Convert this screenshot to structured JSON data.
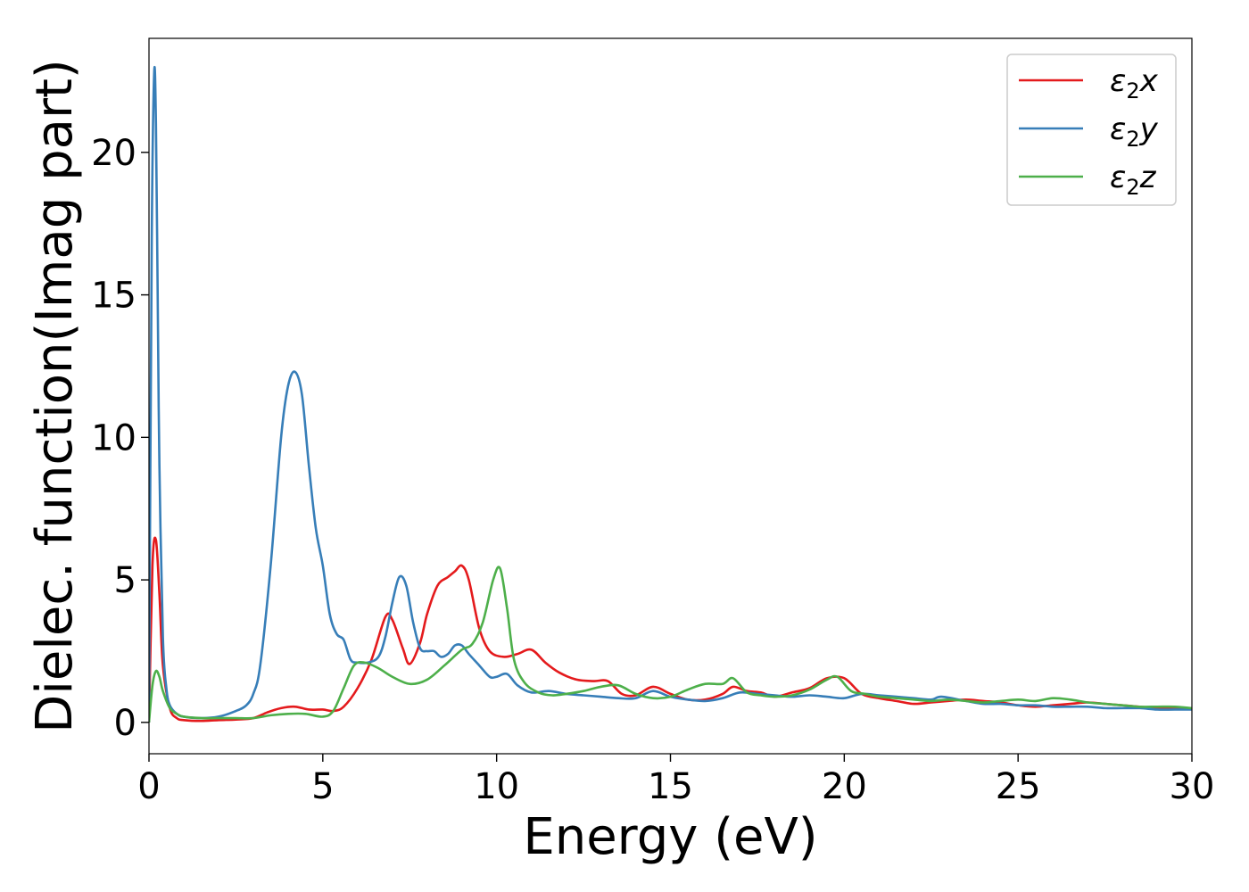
{
  "chart_data": {
    "type": "line",
    "title": "",
    "xlabel": "Energy (eV)",
    "ylabel": "Dielec. function(Imag part)",
    "xlim": [
      0,
      30
    ],
    "ylim": [
      -1.1,
      24
    ],
    "xticks": [
      0,
      5,
      10,
      15,
      20,
      25,
      30
    ],
    "yticks": [
      0,
      5,
      10,
      15,
      20
    ],
    "xtick_labels": [
      "0",
      "5",
      "10",
      "15",
      "20",
      "25",
      "30"
    ],
    "ytick_labels": [
      "0",
      "5",
      "10",
      "15",
      "20"
    ],
    "grid": false,
    "legend_position": "top-right",
    "series": [
      {
        "name": "ε₂x",
        "legend_base": "ε",
        "legend_sub": "2",
        "legend_suffix": "x",
        "color": "#e41a1c",
        "x": [
          0,
          0.1,
          0.2,
          0.3,
          0.4,
          0.6,
          0.8,
          1.0,
          1.5,
          2.0,
          2.5,
          3.0,
          3.4,
          3.8,
          4.2,
          4.6,
          5.0,
          5.3,
          5.6,
          6.0,
          6.4,
          6.8,
          7.0,
          7.3,
          7.5,
          7.8,
          8.0,
          8.3,
          8.6,
          8.8,
          9.0,
          9.2,
          9.5,
          9.8,
          10.2,
          10.6,
          11.0,
          11.4,
          11.8,
          12.3,
          12.8,
          13.2,
          13.6,
          14.0,
          14.5,
          15.0,
          15.5,
          16.0,
          16.5,
          16.8,
          17.2,
          17.6,
          18.0,
          18.5,
          19.0,
          19.5,
          20.0,
          20.5,
          21.0,
          21.5,
          22.0,
          22.5,
          23.0,
          23.5,
          24.0,
          24.5,
          25.0,
          25.5,
          26.0,
          26.5,
          27.0,
          27.5,
          28.0,
          28.5,
          29.0,
          29.5,
          30.0
        ],
        "y": [
          0,
          5.5,
          6.4,
          4.5,
          2.0,
          0.5,
          0.15,
          0.08,
          0.05,
          0.08,
          0.1,
          0.15,
          0.35,
          0.5,
          0.55,
          0.45,
          0.45,
          0.4,
          0.55,
          1.2,
          2.2,
          3.7,
          3.6,
          2.6,
          2.05,
          2.8,
          3.8,
          4.8,
          5.1,
          5.3,
          5.5,
          5.0,
          3.3,
          2.5,
          2.3,
          2.4,
          2.55,
          2.1,
          1.75,
          1.5,
          1.45,
          1.45,
          1.0,
          0.95,
          1.25,
          1.0,
          0.8,
          0.8,
          1.0,
          1.25,
          1.1,
          1.05,
          0.9,
          1.05,
          1.2,
          1.55,
          1.55,
          1.0,
          0.85,
          0.75,
          0.65,
          0.7,
          0.75,
          0.8,
          0.75,
          0.7,
          0.6,
          0.55,
          0.6,
          0.65,
          0.7,
          0.65,
          0.6,
          0.55,
          0.5,
          0.5,
          0.5
        ]
      },
      {
        "name": "ε₂y",
        "legend_base": "ε",
        "legend_sub": "2",
        "legend_suffix": "y",
        "color": "#377eb8",
        "x": [
          0,
          0.08,
          0.15,
          0.2,
          0.25,
          0.3,
          0.4,
          0.5,
          0.6,
          0.8,
          1.0,
          1.5,
          2.0,
          2.5,
          2.8,
          3.0,
          3.2,
          3.5,
          3.8,
          4.0,
          4.2,
          4.4,
          4.6,
          4.8,
          5.0,
          5.2,
          5.4,
          5.6,
          5.8,
          6.0,
          6.3,
          6.6,
          6.8,
          7.0,
          7.2,
          7.4,
          7.6,
          7.8,
          8.0,
          8.2,
          8.4,
          8.6,
          8.8,
          9.0,
          9.2,
          9.5,
          9.8,
          10.0,
          10.3,
          10.6,
          11.0,
          11.5,
          12.0,
          12.5,
          13.0,
          13.5,
          14.0,
          14.5,
          15.0,
          15.5,
          16.0,
          16.5,
          17.0,
          17.5,
          18.0,
          18.5,
          19.0,
          19.5,
          20.0,
          20.5,
          21.0,
          21.5,
          22.0,
          22.5,
          22.8,
          23.5,
          24.0,
          24.5,
          25.0,
          25.5,
          26.0,
          26.5,
          27.0,
          27.5,
          28.0,
          28.5,
          29.0,
          29.5,
          30.0
        ],
        "y": [
          0,
          17.0,
          22.8,
          21.0,
          15.0,
          9.0,
          3.0,
          1.2,
          0.6,
          0.3,
          0.2,
          0.15,
          0.2,
          0.4,
          0.6,
          1.0,
          2.0,
          5.5,
          10.0,
          11.8,
          12.3,
          11.5,
          9.0,
          6.8,
          5.5,
          3.8,
          3.1,
          2.9,
          2.2,
          2.1,
          2.1,
          2.3,
          3.0,
          4.2,
          5.1,
          4.8,
          3.5,
          2.6,
          2.5,
          2.5,
          2.3,
          2.4,
          2.7,
          2.7,
          2.4,
          2.0,
          1.6,
          1.6,
          1.7,
          1.3,
          1.05,
          1.1,
          1.0,
          0.95,
          0.9,
          0.85,
          0.85,
          1.1,
          0.9,
          0.8,
          0.75,
          0.85,
          1.05,
          1.0,
          0.95,
          0.9,
          0.95,
          0.9,
          0.85,
          1.0,
          0.95,
          0.9,
          0.85,
          0.8,
          0.9,
          0.75,
          0.65,
          0.65,
          0.6,
          0.6,
          0.55,
          0.55,
          0.55,
          0.5,
          0.5,
          0.5,
          0.45,
          0.45,
          0.45
        ]
      },
      {
        "name": "ε₂z",
        "legend_base": "ε",
        "legend_sub": "2",
        "legend_suffix": "z",
        "color": "#4daf4a",
        "x": [
          0,
          0.1,
          0.2,
          0.3,
          0.4,
          0.6,
          0.8,
          1.0,
          1.5,
          2.0,
          2.5,
          3.0,
          3.5,
          4.0,
          4.5,
          5.0,
          5.3,
          5.6,
          5.9,
          6.2,
          6.6,
          7.0,
          7.5,
          8.0,
          8.5,
          9.0,
          9.3,
          9.6,
          9.9,
          10.1,
          10.3,
          10.5,
          10.8,
          11.2,
          11.6,
          12.0,
          12.5,
          13.0,
          13.5,
          14.0,
          14.5,
          15.0,
          15.5,
          16.0,
          16.5,
          16.8,
          17.2,
          17.6,
          18.0,
          18.5,
          19.0,
          19.5,
          19.8,
          20.2,
          20.6,
          21.0,
          21.5,
          22.0,
          22.5,
          23.0,
          23.5,
          24.0,
          24.5,
          25.0,
          25.5,
          26.0,
          26.5,
          27.0,
          27.5,
          28.0,
          28.5,
          29.0,
          29.5,
          30.0
        ],
        "y": [
          0,
          1.3,
          1.8,
          1.6,
          1.1,
          0.5,
          0.3,
          0.2,
          0.15,
          0.15,
          0.15,
          0.15,
          0.25,
          0.3,
          0.3,
          0.2,
          0.4,
          1.2,
          2.0,
          2.1,
          1.9,
          1.6,
          1.35,
          1.5,
          2.0,
          2.55,
          2.75,
          3.5,
          5.0,
          5.4,
          4.0,
          2.2,
          1.4,
          1.05,
          0.95,
          1.0,
          1.1,
          1.25,
          1.3,
          1.0,
          0.85,
          0.9,
          1.15,
          1.35,
          1.35,
          1.55,
          1.05,
          0.95,
          0.9,
          0.95,
          1.15,
          1.5,
          1.6,
          1.1,
          1.0,
          0.9,
          0.85,
          0.8,
          0.75,
          0.8,
          0.75,
          0.7,
          0.75,
          0.8,
          0.75,
          0.85,
          0.8,
          0.7,
          0.65,
          0.6,
          0.55,
          0.55,
          0.55,
          0.5
        ]
      }
    ]
  }
}
